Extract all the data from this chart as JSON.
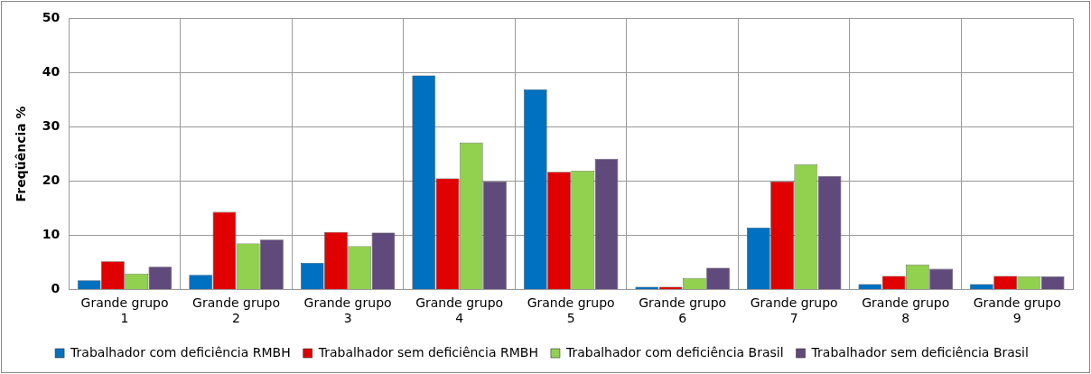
{
  "chart_data": {
    "type": "bar",
    "ylabel": "Freqüência %",
    "categories": [
      "Grande grupo 1",
      "Grande grupo 2",
      "Grande grupo 3",
      "Grande grupo 4",
      "Grande grupo 5",
      "Grande grupo 6",
      "Grande grupo 7",
      "Grande grupo 8",
      "Grande grupo 9"
    ],
    "series": [
      {
        "name": "Trabalhador com deficiência RMBH",
        "color": "#0070c0",
        "values": [
          1.7,
          2.7,
          4.9,
          39.5,
          36.9,
          0.5,
          11.4,
          1.0,
          1.0
        ]
      },
      {
        "name": "Trabalhador sem deficiência RMBH",
        "color": "#e00000",
        "values": [
          5.2,
          14.3,
          10.6,
          20.5,
          21.7,
          0.5,
          19.9,
          2.5,
          2.5
        ]
      },
      {
        "name": "Trabalhador com deficiência Brasil",
        "color": "#92d050",
        "values": [
          2.9,
          8.5,
          8.0,
          27.1,
          21.9,
          2.1,
          23.1,
          4.6,
          2.4
        ]
      },
      {
        "name": "Trabalhador sem deficiência Brasil",
        "color": "#604a7b",
        "values": [
          4.2,
          9.2,
          10.5,
          19.9,
          24.1,
          4.0,
          20.9,
          3.8,
          2.4
        ]
      }
    ],
    "ylim": [
      0,
      50
    ],
    "yticks": [
      0,
      10,
      20,
      30,
      40,
      50
    ],
    "grid": true,
    "legend": "bottom"
  }
}
